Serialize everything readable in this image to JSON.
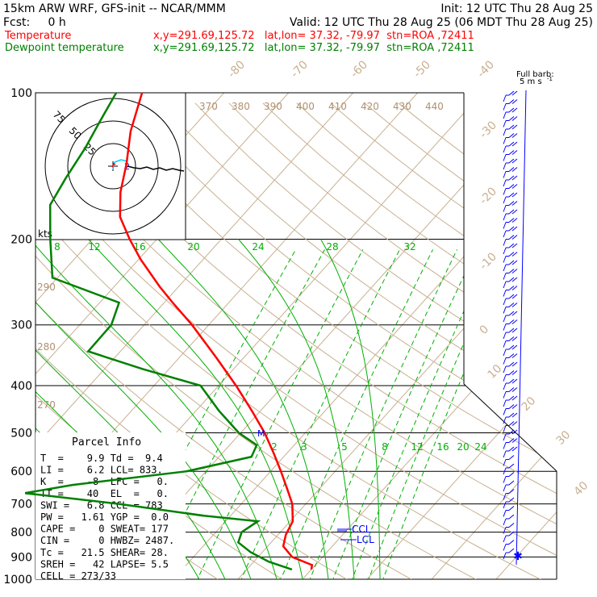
{
  "header": {
    "model": "15km ARW WRF, GFS-init  -- NCAR/MMM",
    "fcst": "Fcst:     0 h",
    "init": "Init: 12 UTC Thu 28 Aug 25",
    "valid": "Valid: 12 UTC Thu 28 Aug 25 (06 MDT Thu 28 Aug 25)",
    "temp_label": "Temperature",
    "temp_info": "x,y=291.69,125.72   lat,lon= 37.32, -79.97  stn=ROA ,72411",
    "dew_label": "Dewpoint temperature",
    "dew_info": "x,y=291.69,125.72   lat,lon= 37.32, -79.97  stn=ROA ,72411"
  },
  "colors": {
    "temperature": "#ff0000",
    "dewpoint": "#008000",
    "mixing_ratio": "#00b000",
    "isotherm": "#c8b090",
    "wind_barb": "#0000ff",
    "theta_label": "#b09070"
  },
  "barb_label": [
    "Full barb:",
    "5 m s",
    "-1"
  ],
  "hodograph": {
    "rings": [
      "25",
      "50",
      "75"
    ],
    "units": "kts",
    "center_marks": [
      "2"
    ]
  },
  "theta_labels": [
    "370",
    "380",
    "390",
    "400",
    "410",
    "420",
    "430",
    "440"
  ],
  "theta_left_labels": [
    "290",
    "280",
    "270"
  ],
  "mixing_top_labels": [
    "8",
    "12",
    "16",
    "20",
    "24",
    "28",
    "32"
  ],
  "mixing_bottom_labels": [
    "2",
    "3",
    "5",
    "8",
    "12",
    "16",
    "20",
    "24"
  ],
  "temp_labels": [
    "-80",
    "-70",
    "-60",
    "-50",
    "-40",
    "-30",
    "-20",
    "-10",
    "0",
    "10",
    "20",
    "30",
    "40"
  ],
  "pressure_labels": [
    "100",
    "200",
    "300",
    "400",
    "500",
    "600",
    "700",
    "800",
    "900",
    "1000"
  ],
  "ccl_label": "CCL",
  "lcl_label": "LCL",
  "m_label": "M",
  "parcel": {
    "title": "Parcel Info",
    "rows": [
      "T  =    9.9 Td =  9.4",
      "LI =    6.2 LCL= 833.",
      "K  =    -8  LFC =   0.",
      "TT =    40  EL  =   0.",
      "SWI =   6.8 CCL = 783",
      "PW =   1.61 YGP =  0.0",
      "CAPE =    0 SWEAT= 177",
      "CIN =     0 HWBZ= 2487.",
      "Tc =   21.5 SHEAR= 28.",
      "SREH =   42 LAPSE= 5.5",
      "CELL = 273/33"
    ]
  },
  "chart_data": {
    "type": "skew-t log-p",
    "title": "15km ARW WRF, GFS-init  -- NCAR/MMM",
    "ylabel": "",
    "xlabel": "",
    "yscale": "log",
    "ylim": [
      1000,
      100
    ],
    "pressure_levels": [
      100,
      200,
      300,
      400,
      500,
      600,
      700,
      800,
      900,
      1000
    ],
    "series": [
      {
        "name": "Temperature",
        "color": "#ff0000",
        "points": [
          {
            "p": 955,
            "t": 20.0
          },
          {
            "p": 935,
            "t": 19.5
          },
          {
            "p": 900,
            "t": 15.3
          },
          {
            "p": 855,
            "t": 12.4
          },
          {
            "p": 810,
            "t": 11.2
          },
          {
            "p": 760,
            "t": 10.4
          },
          {
            "p": 700,
            "t": 7.9
          },
          {
            "p": 650,
            "t": 4.9
          },
          {
            "p": 600,
            "t": 1.6
          },
          {
            "p": 550,
            "t": -2.1
          },
          {
            "p": 500,
            "t": -6.3
          },
          {
            "p": 450,
            "t": -11.4
          },
          {
            "p": 400,
            "t": -17.3
          },
          {
            "p": 350,
            "t": -24.3
          },
          {
            "p": 300,
            "t": -32.6
          },
          {
            "p": 270,
            "t": -38.7
          },
          {
            "p": 250,
            "t": -43.0
          },
          {
            "p": 220,
            "t": -49.7
          },
          {
            "p": 200,
            "t": -54.2
          },
          {
            "p": 180,
            "t": -58.8
          },
          {
            "p": 160,
            "t": -62.2
          },
          {
            "p": 140,
            "t": -65.2
          },
          {
            "p": 120,
            "t": -69.1
          },
          {
            "p": 100,
            "t": -72.7
          }
        ]
      },
      {
        "name": "Dewpoint temperature",
        "color": "#008000",
        "points": [
          {
            "p": 955,
            "t": 17.0
          },
          {
            "p": 920,
            "t": 12.3
          },
          {
            "p": 880,
            "t": 8.2
          },
          {
            "p": 840,
            "t": 4.9
          },
          {
            "p": 800,
            "t": 4.0
          },
          {
            "p": 760,
            "t": 5.0
          },
          {
            "p": 740,
            "t": -4.3
          },
          {
            "p": 700,
            "t": -19.0
          },
          {
            "p": 665,
            "t": -35.0
          },
          {
            "p": 640,
            "t": -28.8
          },
          {
            "p": 600,
            "t": -13.0
          },
          {
            "p": 560,
            "t": -5.0
          },
          {
            "p": 530,
            "t": -5.8
          },
          {
            "p": 500,
            "t": -10.3
          },
          {
            "p": 450,
            "t": -16.5
          },
          {
            "p": 400,
            "t": -22.8
          },
          {
            "p": 370,
            "t": -34.0
          },
          {
            "p": 340,
            "t": -45.0
          },
          {
            "p": 300,
            "t": -45.1
          },
          {
            "p": 270,
            "t": -47.0
          },
          {
            "p": 240,
            "t": -60.8
          },
          {
            "p": 200,
            "t": -66.5
          },
          {
            "p": 170,
            "t": -71.3
          },
          {
            "p": 150,
            "t": -72.6
          },
          {
            "p": 130,
            "t": -73.8
          },
          {
            "p": 115,
            "t": -75.2
          },
          {
            "p": 100,
            "t": -76.7
          }
        ]
      }
    ],
    "annotations": [
      {
        "text": "CCL",
        "p": 783
      },
      {
        "text": "LCL",
        "p": 833
      },
      {
        "text": "M",
        "p": 500
      }
    ]
  }
}
